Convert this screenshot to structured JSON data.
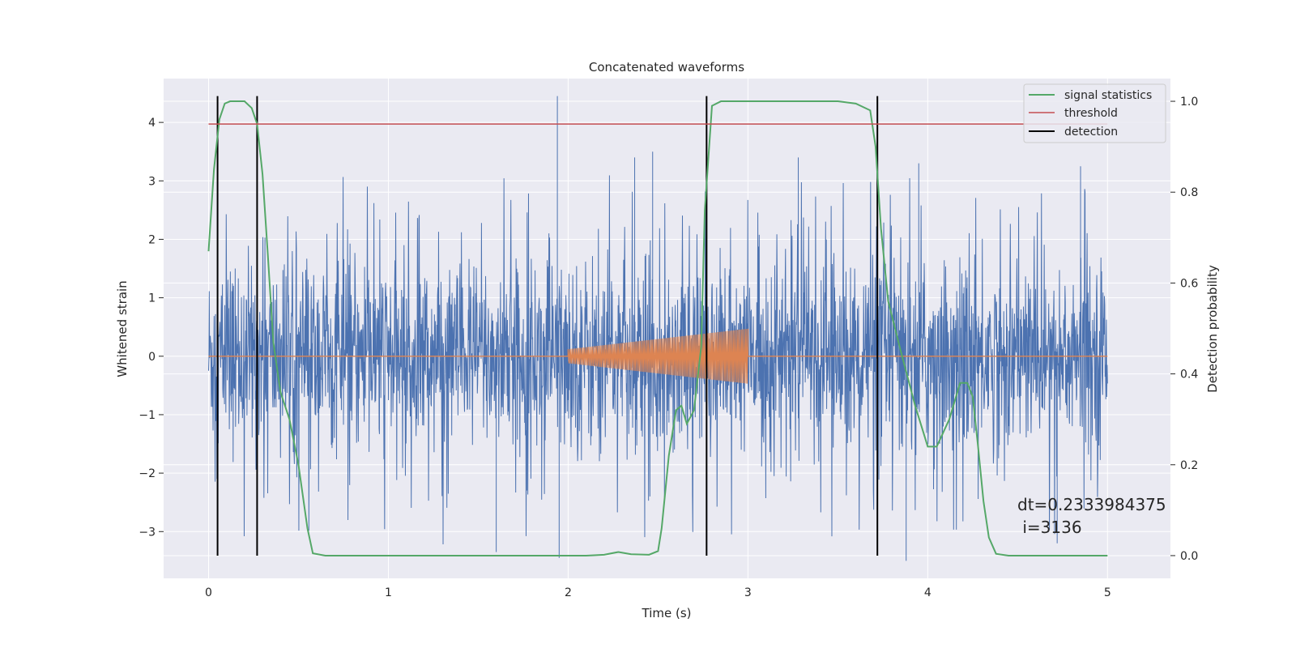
{
  "chart_data": {
    "type": "line",
    "title": "Concatenated waveforms",
    "xlabel": "Time (s)",
    "ylabel_left": "Whitened strain",
    "ylabel_right": "Detection probability",
    "xlim": [
      -0.25,
      5.35
    ],
    "ylim_left": [
      -3.8,
      4.75
    ],
    "ylim_right": [
      -0.05,
      1.05
    ],
    "x_ticks": [
      0,
      1,
      2,
      3,
      4,
      5
    ],
    "x_tick_labels": [
      "0",
      "1",
      "2",
      "3",
      "4",
      "5"
    ],
    "y_left_ticks": [
      -3,
      -2,
      -1,
      0,
      1,
      2,
      3,
      4
    ],
    "y_left_tick_labels": [
      "−3",
      "−2",
      "−1",
      "0",
      "1",
      "2",
      "3",
      "4"
    ],
    "y_right_ticks": [
      0.0,
      0.2,
      0.4,
      0.6,
      0.8,
      1.0
    ],
    "y_right_tick_labels": [
      "0.0",
      "0.2",
      "0.4",
      "0.6",
      "0.8",
      "1.0"
    ],
    "grid": true,
    "legend_position": "top-right",
    "colors": {
      "strain": "#4c72b0",
      "injected": "#dd8452",
      "signal_statistics": "#55a868",
      "threshold": "#c44e52",
      "detection": "#000000",
      "background": "#eaeaf2",
      "grid": "#ffffff"
    },
    "strain": {
      "x_range": [
        0.0,
        5.0
      ],
      "typical_amplitude": 1.5,
      "peaks": [
        {
          "x": 1.94,
          "y": 4.45
        },
        {
          "x": 1.95,
          "y": -3.45
        },
        {
          "x": 3.88,
          "y": -3.5
        },
        {
          "x": 2.37,
          "y": 3.4
        },
        {
          "x": 2.47,
          "y": 3.5
        },
        {
          "x": 3.28,
          "y": 3.4
        },
        {
          "x": 3.95,
          "y": 3.3
        },
        {
          "x": 4.85,
          "y": 3.25
        },
        {
          "x": 1.6,
          "y": -3.35
        },
        {
          "x": 4.72,
          "y": -3.2
        }
      ]
    },
    "injected_waveform": {
      "x_range": [
        2.0,
        3.0
      ],
      "amplitude_start": 0.12,
      "amplitude_end": 0.47
    },
    "series": [
      {
        "name": "signal statistics",
        "axis": "right",
        "x": [
          0.0,
          0.03,
          0.06,
          0.09,
          0.12,
          0.2,
          0.24,
          0.27,
          0.3,
          0.33,
          0.36,
          0.4,
          0.45,
          0.5,
          0.55,
          0.58,
          0.65,
          1.0,
          1.5,
          2.0,
          2.1,
          2.2,
          2.28,
          2.35,
          2.45,
          2.5,
          2.52,
          2.56,
          2.6,
          2.63,
          2.66,
          2.7,
          2.74,
          2.76,
          2.8,
          2.85,
          2.9,
          3.0,
          3.5,
          3.6,
          3.68,
          3.71,
          3.74,
          3.78,
          3.85,
          3.93,
          4.0,
          4.05,
          4.12,
          4.18,
          4.22,
          4.25,
          4.28,
          4.31,
          4.34,
          4.38,
          4.45,
          4.6,
          5.0
        ],
        "values": [
          0.67,
          0.85,
          0.96,
          0.995,
          1.0,
          1.0,
          0.985,
          0.95,
          0.84,
          0.66,
          0.47,
          0.36,
          0.3,
          0.2,
          0.06,
          0.005,
          0.0,
          0.0,
          0.0,
          0.0,
          0.0,
          0.002,
          0.008,
          0.003,
          0.002,
          0.01,
          0.06,
          0.22,
          0.32,
          0.33,
          0.29,
          0.32,
          0.46,
          0.76,
          0.99,
          1.0,
          1.0,
          1.0,
          1.0,
          0.995,
          0.98,
          0.9,
          0.72,
          0.56,
          0.45,
          0.33,
          0.24,
          0.24,
          0.3,
          0.38,
          0.38,
          0.35,
          0.24,
          0.12,
          0.04,
          0.004,
          0.0,
          0.0,
          0.0
        ]
      },
      {
        "name": "threshold",
        "axis": "right",
        "x": [
          0.0,
          5.0
        ],
        "values": [
          0.95,
          0.95
        ]
      }
    ],
    "detection": {
      "name": "detection",
      "x": [
        0.05,
        0.27,
        2.77,
        3.72
      ]
    },
    "legend": [
      "signal statistics",
      "threshold",
      "detection"
    ],
    "annotation": {
      "line1": "dt=0.2333984375",
      "line2": " i=3136"
    }
  }
}
